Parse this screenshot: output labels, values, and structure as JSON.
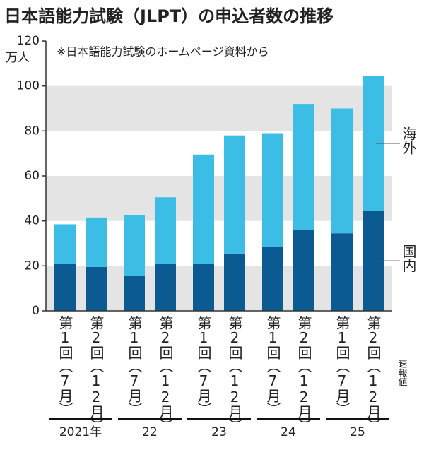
{
  "chart_data": {
    "type": "stacked_bar",
    "title": "日本語能力試験（JLPT）の申込者数の推移",
    "y_unit": "万人",
    "note": "※日本語能力試験のホームページ資料から",
    "status_note": "速報値",
    "categories": [
      "第1回（7月）",
      "第2回（12月）",
      "第1回（7月）",
      "第2回（12月）",
      "第1回（7月）",
      "第2回（12月）",
      "第1回（7月）",
      "第2回（12月）",
      "第1回（7月）",
      "第2回（12月）"
    ],
    "group_labels": [
      "2021年",
      "22",
      "23",
      "24",
      "25"
    ],
    "series": [
      {
        "name": "国内",
        "color": "#0c5a92",
        "values": [
          21,
          19.5,
          15.5,
          21,
          21,
          25.5,
          28.5,
          36,
          34.5,
          44.5
        ]
      },
      {
        "name": "海外",
        "color": "#3cbde6",
        "values": [
          17.5,
          22,
          27,
          29.5,
          48.5,
          52.5,
          50.5,
          56,
          55.5,
          60
        ]
      }
    ],
    "ylim": [
      0,
      120
    ],
    "yticks": [
      0,
      20,
      40,
      60,
      80,
      100,
      120
    ],
    "bands": true
  }
}
